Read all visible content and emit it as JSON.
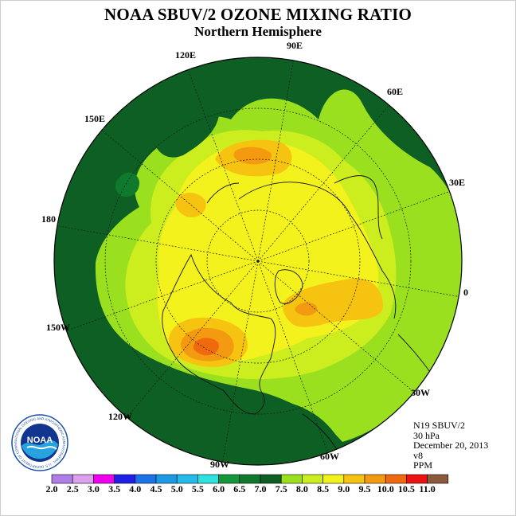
{
  "title": "NOAA SBUV/2 OZONE MIXING RATIO",
  "subtitle": "Northern Hemisphere",
  "longitude_labels": [
    {
      "text": "90E",
      "key": "lon90e"
    },
    {
      "text": "60E",
      "key": "lon60e"
    },
    {
      "text": "30E",
      "key": "lon30e"
    },
    {
      "text": "0",
      "key": "lon0"
    },
    {
      "text": "30W",
      "key": "lon30w"
    },
    {
      "text": "60W",
      "key": "lon60w"
    },
    {
      "text": "90W",
      "key": "lon90w"
    },
    {
      "text": "120W",
      "key": "lon120w"
    },
    {
      "text": "150W",
      "key": "lon150w"
    },
    {
      "text": "180",
      "key": "lon180"
    },
    {
      "text": "150E",
      "key": "lon150e"
    },
    {
      "text": "120E",
      "key": "lon120e"
    }
  ],
  "info": {
    "instrument": "N19 SBUV/2",
    "level": "30 hPa",
    "date": "December 20, 2013",
    "version": "v8",
    "units": "PPM"
  },
  "logo": {
    "text": "NOAA",
    "ring_text": "NATIONAL OCEANIC AND ATMOSPHERIC ADMINISTRATION · U.S. DEPARTMENT OF COMMERCE",
    "icon": "noaa-logo-icon"
  },
  "colorbar": {
    "labels": [
      "2.0",
      "2.5",
      "3.0",
      "3.5",
      "4.0",
      "4.5",
      "5.0",
      "5.5",
      "6.0",
      "6.5",
      "7.0",
      "7.5",
      "8.0",
      "8.5",
      "9.0",
      "9.5",
      "10.0",
      "10.5",
      "11.0"
    ],
    "colors": [
      "#b07ee8",
      "#dda0ef",
      "#ee00ee",
      "#1f1fe6",
      "#1c72e6",
      "#1c9ae6",
      "#27bbea",
      "#2ee2e2",
      "#17953a",
      "#0f7a2e",
      "#0d5f23",
      "#9be01e",
      "#cdee1e",
      "#f4f21c",
      "#f6c311",
      "#f49a10",
      "#f1690f",
      "#ee1111",
      "#8b5a3c"
    ]
  },
  "map_colors": {
    "c6_5": "#0f7a2e",
    "c7_0": "#0d5f23",
    "c7_5": "#9be01e",
    "c8_0": "#cdee1e",
    "c8_5": "#f4f21c",
    "c9_0": "#f6c311",
    "c9_5": "#f49a10",
    "c10_0": "#f1690f"
  }
}
